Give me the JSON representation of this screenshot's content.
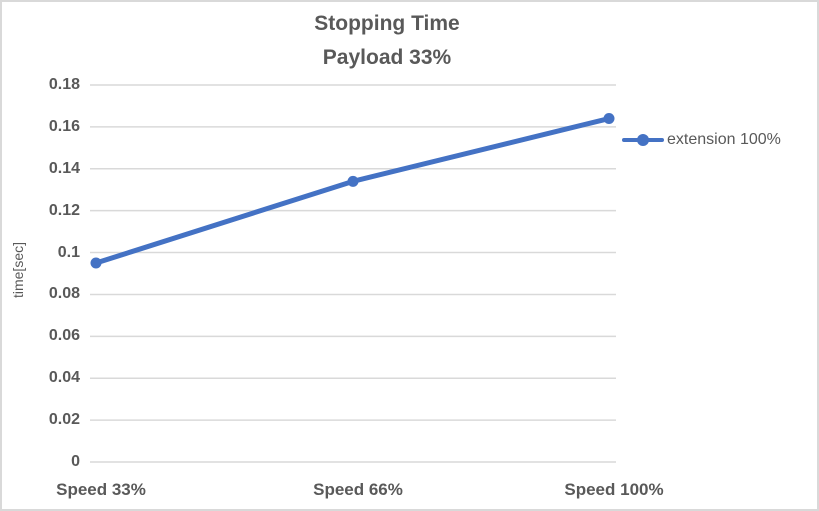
{
  "title": {
    "line1": "Stopping Time",
    "line2": "Payload 33%"
  },
  "y_axis": {
    "title": "time[sec]"
  },
  "legend": {
    "label": "extension 100%"
  },
  "chart_data": {
    "type": "line",
    "title": "Stopping Time Payload 33%",
    "categories": [
      "Speed 33%",
      "Speed 66%",
      "Speed 100%"
    ],
    "series": [
      {
        "name": "extension 100%",
        "values": [
          0.095,
          0.134,
          0.164
        ]
      }
    ],
    "xlabel": "",
    "ylabel": "time[sec]",
    "ylim": [
      0,
      0.18
    ],
    "ytick_step": 0.02,
    "ytick_labels": [
      "0",
      "0.02",
      "0.04",
      "0.06",
      "0.08",
      "0.1",
      "0.12",
      "0.14",
      "0.16",
      "0.18"
    ],
    "grid": true,
    "legend_position": "right",
    "marker": "circle",
    "colors": {
      "series": "#4472C4",
      "gridline": "#D9D9D9",
      "text": "#595959",
      "border": "#D9D9D9",
      "background": "#FFFFFF"
    }
  }
}
